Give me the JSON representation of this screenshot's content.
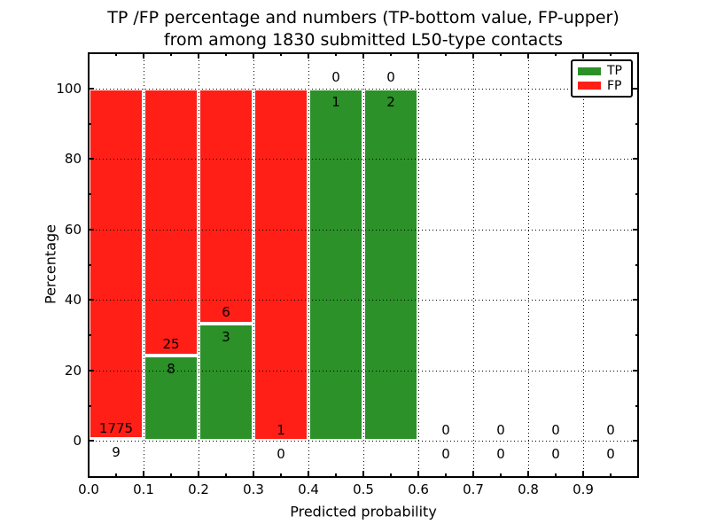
{
  "chart_data": {
    "type": "bar",
    "stacked": true,
    "title_line1": "TP /FP percentage and numbers (TP-bottom value, FP-upper)",
    "title_line2": "from among 1830 submitted L50-type contacts",
    "xlabel": "Predicted probability",
    "ylabel": "Percentage",
    "xlim": [
      0.0,
      1.0
    ],
    "ylim": [
      -10,
      110
    ],
    "xtick_labels": [
      "0.0",
      "0.1",
      "0.2",
      "0.3",
      "0.4",
      "0.5",
      "0.6",
      "0.7",
      "0.8",
      "0.9"
    ],
    "xtick_values": [
      0.0,
      0.1,
      0.2,
      0.3,
      0.4,
      0.5,
      0.6,
      0.7,
      0.8,
      0.9
    ],
    "ytick_labels": [
      "0",
      "20",
      "40",
      "60",
      "80",
      "100"
    ],
    "ytick_values": [
      0,
      20,
      40,
      60,
      80,
      100
    ],
    "grid": "dotted",
    "total_contacts": 1830,
    "bins": [
      {
        "x0": 0.0,
        "x1": 0.1,
        "tp": 9,
        "fp": 1775,
        "tp_pct": 0.5,
        "fp_pct": 99.5
      },
      {
        "x0": 0.1,
        "x1": 0.2,
        "tp": 8,
        "fp": 25,
        "tp_pct": 24.2,
        "fp_pct": 75.8
      },
      {
        "x0": 0.2,
        "x1": 0.3,
        "tp": 3,
        "fp": 6,
        "tp_pct": 33.3,
        "fp_pct": 66.7
      },
      {
        "x0": 0.3,
        "x1": 0.4,
        "tp": 0,
        "fp": 1,
        "tp_pct": 0,
        "fp_pct": 100
      },
      {
        "x0": 0.4,
        "x1": 0.5,
        "tp": 1,
        "fp": 0,
        "tp_pct": 100,
        "fp_pct": 0
      },
      {
        "x0": 0.5,
        "x1": 0.6,
        "tp": 2,
        "fp": 0,
        "tp_pct": 100,
        "fp_pct": 0
      },
      {
        "x0": 0.6,
        "x1": 0.7,
        "tp": 0,
        "fp": 0,
        "tp_pct": 0,
        "fp_pct": 0
      },
      {
        "x0": 0.7,
        "x1": 0.8,
        "tp": 0,
        "fp": 0,
        "tp_pct": 0,
        "fp_pct": 0
      },
      {
        "x0": 0.8,
        "x1": 0.9,
        "tp": 0,
        "fp": 0,
        "tp_pct": 0,
        "fp_pct": 0
      },
      {
        "x0": 0.9,
        "x1": 1.0,
        "tp": 0,
        "fp": 0,
        "tp_pct": 0,
        "fp_pct": 0
      }
    ],
    "legend": {
      "position": "upper right",
      "items": [
        {
          "label": "TP",
          "color": "#2b9128"
        },
        {
          "label": "FP",
          "color": "#ff1f17"
        }
      ]
    }
  }
}
